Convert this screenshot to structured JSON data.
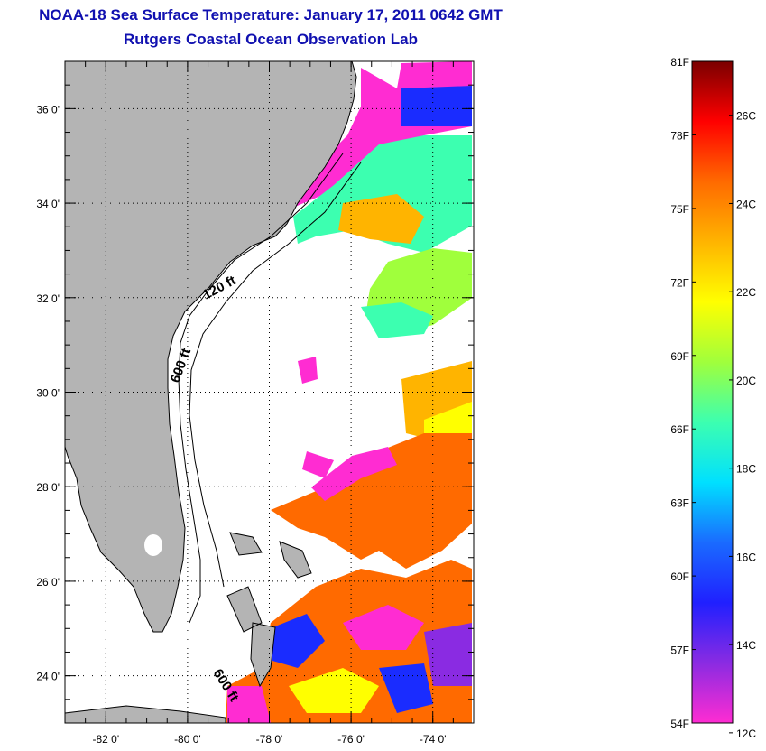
{
  "header": {
    "title": "NOAA-18 Sea Surface Temperature:  January 17, 2011 0642 GMT",
    "subtitle": "Rutgers Coastal Ocean Observation Lab"
  },
  "map": {
    "lat_labels": [
      "36 0'",
      "34 0'",
      "32 0'",
      "30 0'",
      "28 0'",
      "26 0'",
      "24 0'"
    ],
    "lat_values": [
      36,
      34,
      32,
      30,
      28,
      26,
      24
    ],
    "lon_labels": [
      "-82 0'",
      "-80 0'",
      "-78 0'",
      "-76 0'",
      "-74 0'"
    ],
    "lon_values": [
      -82,
      -80,
      -78,
      -76,
      -74
    ],
    "lat_range": [
      23,
      37
    ],
    "lon_range": [
      -83,
      -73
    ],
    "contour_labels": [
      "120 ft",
      "600 ft",
      "600 ft"
    ],
    "land_color": "#b4b4b4",
    "cloud_color": "#ffffff"
  },
  "colorbar": {
    "f_labels": [
      "81F",
      "78F",
      "75F",
      "72F",
      "69F",
      "66F",
      "63F",
      "60F",
      "57F",
      "54F"
    ],
    "f_values": [
      81,
      78,
      75,
      72,
      69,
      66,
      63,
      60,
      57,
      54
    ],
    "c_labels": [
      "26C",
      "24C",
      "22C",
      "20C",
      "18C",
      "16C",
      "14C",
      "12C"
    ],
    "c_values": [
      26,
      24,
      22,
      20,
      18,
      16,
      14,
      12
    ],
    "range_f": [
      54,
      81
    ],
    "stops": [
      "#ff2cd2",
      "#8a2be2",
      "#2020ff",
      "#1a6bff",
      "#00e0ff",
      "#3cffb0",
      "#a0ff3c",
      "#ffff00",
      "#ffb400",
      "#ff6a00",
      "#ff0000",
      "#7a0000"
    ]
  }
}
